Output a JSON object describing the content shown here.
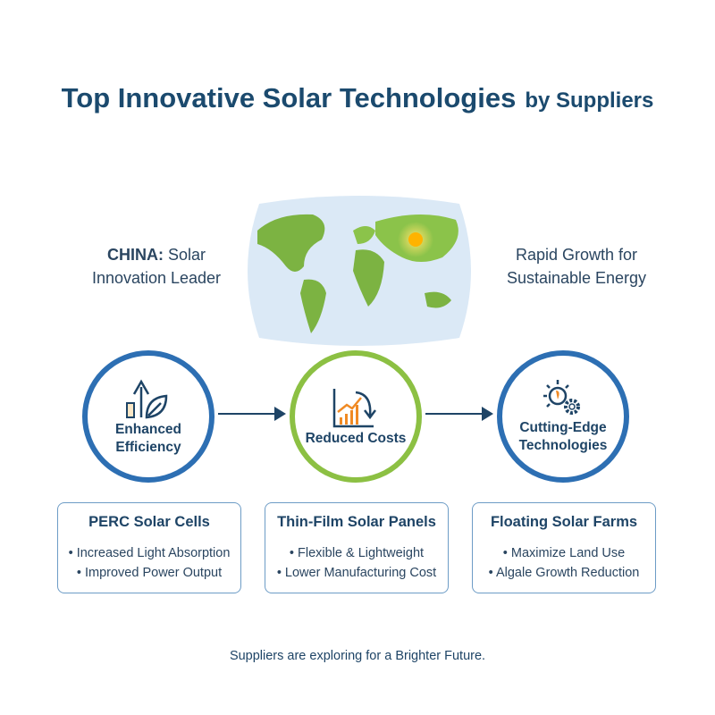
{
  "header": {
    "title": "Top Innovative Solar Technologies",
    "subtitle": "by Suppliers"
  },
  "left_note": {
    "line1_bold": "CHINA:",
    "line1": " Solar",
    "line2": "Innovation Leader"
  },
  "right_note": {
    "line1": "Rapid Growth for",
    "line2": "Sustainable Energy"
  },
  "colors": {
    "blue": "#2d6fb3",
    "green": "#8cc043",
    "navy": "#1e4466",
    "orange": "#f08a24",
    "map_water": "#dbe9f6",
    "land": "#7cb342"
  },
  "benefits": [
    {
      "icon": "efficiency-leaf-arrow-icon",
      "line1": "Enhanced",
      "line2": "Efficiency"
    },
    {
      "icon": "cost-chart-down-icon",
      "line1": "Reduced Costs",
      "line2": ""
    },
    {
      "icon": "sun-gear-icon",
      "line1": "Cutting-Edge",
      "line2": "Technologies"
    }
  ],
  "technologies": [
    {
      "title": "PERC Solar Cells",
      "points": [
        "Increased Light Absorption",
        "Improved Power Output"
      ]
    },
    {
      "title": "Thin-Film Solar Panels",
      "points": [
        "Flexible & Lightweight",
        "Lower Manufacturing Cost"
      ]
    },
    {
      "title": "Floating Solar Farms",
      "points": [
        "Maximize Land Use",
        "Algale Growth Reduction"
      ]
    }
  ],
  "footer": "Suppliers are exploring for a Brighter Future."
}
